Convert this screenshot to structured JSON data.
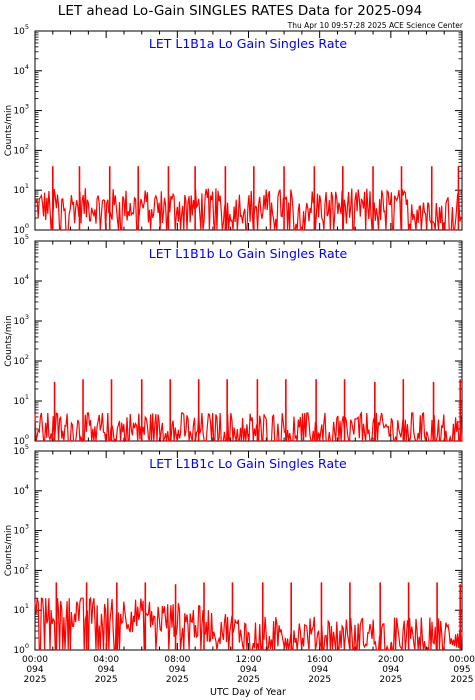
{
  "title": "LET ahead Lo-Gain SINGLES RATES Data for 2025-094",
  "timestamp": "Thu Apr 10 09:57:28 2025 ACE Science Center",
  "xlabel": "UTC Day of Year",
  "ylabel": "Counts/min",
  "colors": {
    "series": "#ff0000",
    "panel_title": "#0000ff",
    "axes": "#000000"
  },
  "chart_data": [
    {
      "type": "line",
      "title": "LET L1B1a Lo Gain Singles Rate",
      "ylabel": "Counts/min",
      "yscale": "log",
      "ylim": [
        1,
        100000
      ],
      "xlim_hours": [
        0,
        24
      ],
      "y_ticks": [
        "10^0",
        "10^1",
        "10^2",
        "10^3",
        "10^4",
        "10^5"
      ],
      "baseline_level": 4,
      "baseline_noise_range": [
        1,
        12
      ],
      "spikes": [
        {
          "hour": 1.0,
          "value": 40
        },
        {
          "hour": 2.5,
          "value": 40
        },
        {
          "hour": 4.2,
          "value": 40
        },
        {
          "hour": 5.8,
          "value": 40
        },
        {
          "hour": 7.5,
          "value": 40
        },
        {
          "hour": 9.0,
          "value": 40
        },
        {
          "hour": 10.7,
          "value": 40
        },
        {
          "hour": 12.3,
          "value": 40
        },
        {
          "hour": 14.0,
          "value": 40
        },
        {
          "hour": 15.7,
          "value": 40
        },
        {
          "hour": 17.3,
          "value": 40
        },
        {
          "hour": 19.0,
          "value": 40
        },
        {
          "hour": 20.6,
          "value": 40
        },
        {
          "hour": 22.3,
          "value": 40
        },
        {
          "hour": 23.8,
          "value": 40
        }
      ]
    },
    {
      "type": "line",
      "title": "LET L1B1b Lo Gain Singles Rate",
      "ylabel": "Counts/min",
      "yscale": "log",
      "ylim": [
        1,
        100000
      ],
      "xlim_hours": [
        0,
        24
      ],
      "y_ticks": [
        "10^0",
        "10^1",
        "10^2",
        "10^3",
        "10^4",
        "10^5"
      ],
      "baseline_level": 2,
      "baseline_noise_range": [
        1,
        5
      ],
      "spikes": [
        {
          "hour": 1.1,
          "value": 30
        },
        {
          "hour": 2.7,
          "value": 35
        },
        {
          "hour": 4.3,
          "value": 35
        },
        {
          "hour": 6.0,
          "value": 35
        },
        {
          "hour": 7.6,
          "value": 35
        },
        {
          "hour": 9.2,
          "value": 35
        },
        {
          "hour": 10.8,
          "value": 35
        },
        {
          "hour": 12.5,
          "value": 35
        },
        {
          "hour": 14.1,
          "value": 35
        },
        {
          "hour": 15.8,
          "value": 35
        },
        {
          "hour": 17.4,
          "value": 35
        },
        {
          "hour": 19.1,
          "value": 30
        },
        {
          "hour": 20.7,
          "value": 35
        },
        {
          "hour": 22.4,
          "value": 30
        },
        {
          "hour": 23.9,
          "value": 35
        }
      ]
    },
    {
      "type": "line",
      "title": "LET L1B1c Lo Gain Singles Rate",
      "ylabel": "Counts/min",
      "yscale": "log",
      "ylim": [
        1,
        100000
      ],
      "xlim_hours": [
        0,
        24
      ],
      "y_ticks": [
        "10^0",
        "10^1",
        "10^2",
        "10^3",
        "10^4",
        "10^5"
      ],
      "baseline_start": 12,
      "baseline_end": 2.5,
      "baseline_noise_range": [
        1,
        20
      ],
      "spikes": [
        {
          "hour": 1.2,
          "value": 50
        },
        {
          "hour": 2.9,
          "value": 50
        },
        {
          "hour": 4.6,
          "value": 50
        },
        {
          "hour": 6.2,
          "value": 50
        },
        {
          "hour": 7.9,
          "value": 45
        },
        {
          "hour": 9.5,
          "value": 50
        },
        {
          "hour": 11.1,
          "value": 50
        },
        {
          "hour": 12.8,
          "value": 50
        },
        {
          "hour": 14.4,
          "value": 50
        },
        {
          "hour": 16.1,
          "value": 50
        },
        {
          "hour": 17.7,
          "value": 50
        },
        {
          "hour": 19.4,
          "value": 50
        },
        {
          "hour": 21.0,
          "value": 50
        },
        {
          "hour": 22.6,
          "value": 50
        },
        {
          "hour": 23.9,
          "value": 45
        }
      ]
    }
  ],
  "x_ticks": [
    {
      "time": "00:00",
      "day": "094",
      "year": "2025"
    },
    {
      "time": "04:00",
      "day": "094",
      "year": "2025"
    },
    {
      "time": "08:00",
      "day": "094",
      "year": "2025"
    },
    {
      "time": "12:00",
      "day": "094",
      "year": "2025"
    },
    {
      "time": "16:00",
      "day": "094",
      "year": "2025"
    },
    {
      "time": "20:00",
      "day": "094",
      "year": "2025"
    },
    {
      "time": "00:00",
      "day": "095",
      "year": "2025"
    }
  ]
}
